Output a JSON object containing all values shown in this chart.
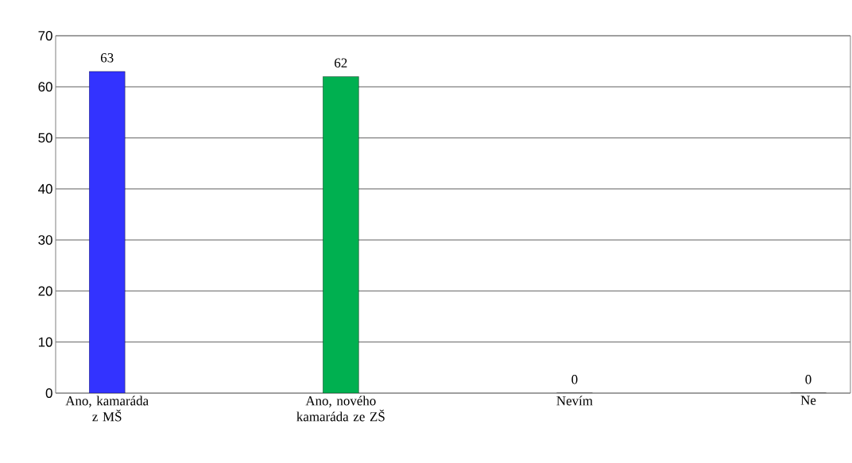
{
  "chart_data": {
    "type": "bar",
    "categories": [
      "Ano, kamaráda z MŠ",
      "Ano, nového kamaráda ze ZŠ",
      "Nevím",
      "Ne"
    ],
    "values": [
      63,
      62,
      0,
      0
    ],
    "colors": [
      "#3333ff",
      "#00b050",
      "#c00000",
      "#7f5f2f"
    ],
    "ylim": [
      0,
      70
    ],
    "yticks": [
      0,
      10,
      20,
      30,
      40,
      50,
      60,
      70
    ],
    "grid": "y",
    "data_labels": true
  }
}
